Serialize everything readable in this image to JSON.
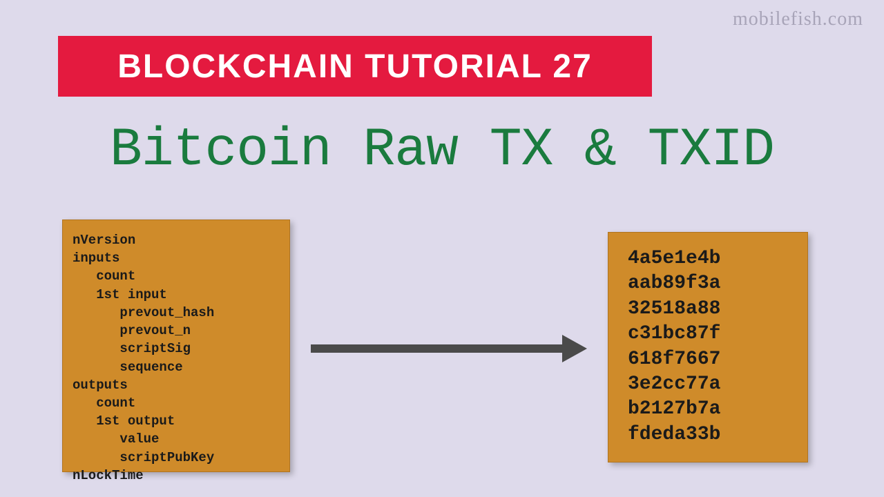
{
  "watermark": "mobilefish.com",
  "banner": {
    "text": "BLOCKCHAIN TUTORIAL 27",
    "bg_color": "#e41a3f",
    "text_color": "#ffffff",
    "font_size": 48,
    "font_weight": 900
  },
  "subtitle": {
    "text": "Bitcoin Raw TX & TXID",
    "color": "#1a7b3e",
    "font_size": 78,
    "font_family": "Courier New"
  },
  "background_color": "#dedaeb",
  "card_style": {
    "bg_color": "#cf8b2a",
    "border_color": "#b07420",
    "shadow": "4px 4px 8px rgba(0,0,0,0.25)",
    "text_color": "#1a1a1a",
    "font_family": "Courier New",
    "font_weight": "bold"
  },
  "left_card": {
    "font_size": 19,
    "lines": [
      "nVersion",
      "inputs",
      "   count",
      "   1st input",
      "      prevout_hash",
      "      prevout_n",
      "      scriptSig",
      "      sequence",
      "outputs",
      "   count",
      "   1st output",
      "      value",
      "      scriptPubKey",
      "nLockTime"
    ]
  },
  "right_card": {
    "font_size": 28,
    "lines": [
      "4a5e1e4b",
      "aab89f3a",
      "32518a88",
      "c31bc87f",
      "618f7667",
      "3e2cc77a",
      "b2127b7a",
      "fdeda33b"
    ]
  },
  "arrow": {
    "color": "#4a4a4a",
    "shaft_height": 12,
    "head_width": 36,
    "head_height": 40,
    "total_width": 400
  }
}
